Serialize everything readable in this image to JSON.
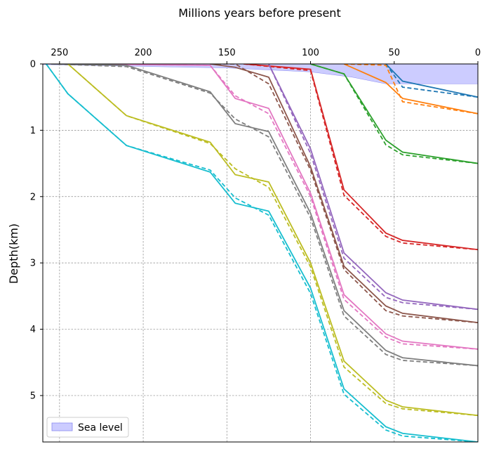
{
  "chart_data": {
    "type": "line",
    "title": "Millions years before present",
    "xlabel": "Millions years before present",
    "ylabel": "Depth(km)",
    "xlim": [
      260,
      0
    ],
    "ylim": [
      5.7,
      0
    ],
    "x_ticks": [
      250,
      200,
      150,
      100,
      50,
      0
    ],
    "y_ticks": [
      0,
      1,
      2,
      3,
      4,
      5
    ],
    "grid": true,
    "legend": {
      "placement": "lower-left",
      "entries": [
        "Sea level"
      ]
    },
    "sea_level": {
      "label": "Sea level",
      "color": "#ccccff",
      "line_color": "#8a8af0",
      "x": [
        260,
        150,
        100,
        75,
        55,
        0
      ],
      "top": [
        0,
        0,
        0,
        0,
        0,
        0
      ],
      "bottom": [
        0.01,
        0.06,
        0.12,
        0.2,
        0.3,
        0.3
      ]
    },
    "series": [
      {
        "color": "#1f77b4",
        "x": [
          55,
          45,
          0
        ],
        "solid": [
          0,
          0.26,
          0.5
        ],
        "dashed": [
          0,
          0.35,
          0.5
        ]
      },
      {
        "color": "#ff7f0e",
        "x": [
          80,
          55,
          45,
          0
        ],
        "solid": [
          0,
          0.28,
          0.52,
          0.75
        ],
        "dashed": [
          0,
          0.02,
          0.57,
          0.75
        ]
      },
      {
        "color": "#2ca02c",
        "x": [
          100,
          80,
          55,
          45,
          0
        ],
        "solid": [
          0,
          0.15,
          1.15,
          1.33,
          1.5
        ],
        "dashed": [
          0,
          0.15,
          1.22,
          1.37,
          1.5
        ]
      },
      {
        "color": "#d62728",
        "x": [
          140,
          100,
          80,
          55,
          45,
          0
        ],
        "solid": [
          0,
          0.08,
          1.9,
          2.55,
          2.66,
          2.8
        ],
        "dashed": [
          0,
          0.1,
          1.98,
          2.6,
          2.7,
          2.8
        ]
      },
      {
        "color": "#9467bd",
        "x": [
          125,
          100,
          80,
          55,
          45,
          0
        ],
        "solid": [
          0,
          1.28,
          2.85,
          3.45,
          3.56,
          3.7
        ],
        "dashed": [
          0,
          1.35,
          2.93,
          3.52,
          3.6,
          3.7
        ]
      },
      {
        "color": "#8c564b",
        "x": [
          160,
          145,
          125,
          100,
          80,
          55,
          45,
          0
        ],
        "solid": [
          0,
          0.05,
          0.2,
          1.55,
          3.05,
          3.65,
          3.76,
          3.9
        ],
        "dashed": [
          0,
          0,
          0.3,
          1.6,
          3.1,
          3.72,
          3.8,
          3.9
        ]
      },
      {
        "color": "#e377c2",
        "x": [
          240,
          160,
          145,
          125,
          100,
          80,
          55,
          45,
          0
        ],
        "solid": [
          0,
          0.02,
          0.52,
          0.67,
          1.95,
          3.48,
          4.07,
          4.18,
          4.3
        ],
        "dashed": [
          0,
          0.02,
          0.48,
          0.75,
          2.0,
          3.55,
          4.12,
          4.22,
          4.3
        ]
      },
      {
        "color": "#7f7f7f",
        "x": [
          255,
          210,
          160,
          145,
          125,
          100,
          80,
          55,
          45,
          0
        ],
        "solid": [
          0,
          0.02,
          0.42,
          0.9,
          1.02,
          2.25,
          3.72,
          4.32,
          4.43,
          4.55
        ],
        "dashed": [
          0,
          0.04,
          0.44,
          0.83,
          1.1,
          2.32,
          3.8,
          4.38,
          4.47,
          4.55
        ]
      },
      {
        "color": "#bcbd22",
        "x": [
          245,
          210,
          160,
          145,
          125,
          100,
          80,
          55,
          45,
          0
        ],
        "solid": [
          0,
          0.78,
          1.18,
          1.67,
          1.78,
          3.0,
          4.48,
          5.07,
          5.17,
          5.3
        ],
        "dashed": [
          0,
          0.78,
          1.2,
          1.58,
          1.86,
          3.06,
          4.57,
          5.12,
          5.2,
          5.3
        ]
      },
      {
        "color": "#17becf",
        "x": [
          258,
          245,
          210,
          160,
          145,
          125,
          100,
          80,
          55,
          45,
          0
        ],
        "solid": [
          0,
          0.45,
          1.23,
          1.63,
          2.1,
          2.22,
          3.38,
          4.9,
          5.47,
          5.57,
          5.7
        ],
        "dashed": [
          0,
          0.45,
          1.23,
          1.6,
          2.02,
          2.28,
          3.46,
          4.98,
          5.52,
          5.61,
          5.7
        ]
      }
    ]
  }
}
